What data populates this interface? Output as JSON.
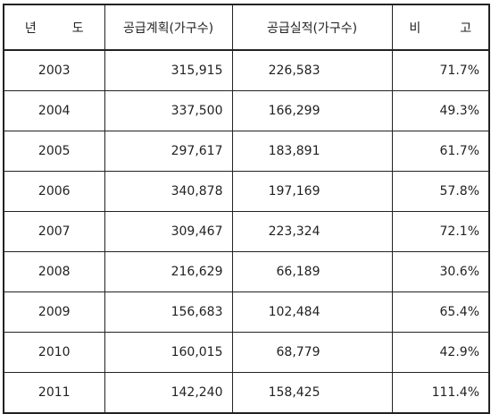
{
  "table": {
    "headers": {
      "year_left": "년",
      "year_right": "도",
      "plan": "공급계획(가구수)",
      "actual": "공급실적(가구수)",
      "note_left": "비",
      "note_right": "고"
    },
    "rows": [
      {
        "year": "2003",
        "plan": "315,915",
        "actual": "226,583",
        "note": "71.7%"
      },
      {
        "year": "2004",
        "plan": "337,500",
        "actual": "166,299",
        "note": "49.3%"
      },
      {
        "year": "2005",
        "plan": "297,617",
        "actual": "183,891",
        "note": "61.7%"
      },
      {
        "year": "2006",
        "plan": "340,878",
        "actual": "197,169",
        "note": "57.8%"
      },
      {
        "year": "2007",
        "plan": "309,467",
        "actual": "223,324",
        "note": "72.1%"
      },
      {
        "year": "2008",
        "plan": "216,629",
        "actual": "66,189",
        "note": "30.6%"
      },
      {
        "year": "2009",
        "plan": "156,683",
        "actual": "102,484",
        "note": "65.4%"
      },
      {
        "year": "2010",
        "plan": "160,015",
        "actual": "68,779",
        "note": "42.9%"
      },
      {
        "year": "2011",
        "plan": "142,240",
        "actual": "158,425",
        "note": "111.4%"
      }
    ]
  }
}
